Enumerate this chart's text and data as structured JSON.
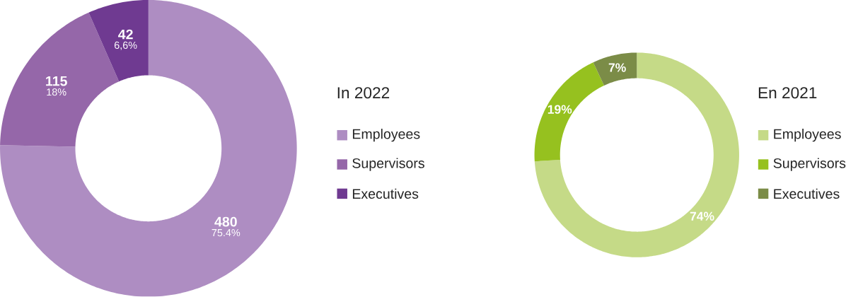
{
  "chart_data": [
    {
      "type": "donut",
      "legend_title": "In 2022",
      "legend": "right",
      "categories": [
        "Employees",
        "Supervisors",
        "Executives"
      ],
      "values": [
        480,
        115,
        42
      ],
      "colors": [
        "#ae8dc2",
        "#9567a9",
        "#6f3a91"
      ],
      "value_labels": [
        "480",
        "115",
        "42"
      ],
      "annotations": [
        "75.4%",
        "18%",
        "6,6%"
      ]
    },
    {
      "type": "donut",
      "legend_title": "En 2021",
      "legend": "right",
      "categories": [
        "Employees",
        "Supervisors",
        "Executives"
      ],
      "values": [
        74,
        19,
        7
      ],
      "colors": [
        "#c5da87",
        "#96c11f",
        "#7b8c47"
      ],
      "value_labels": [
        "74%",
        "19%",
        "7%"
      ]
    }
  ]
}
